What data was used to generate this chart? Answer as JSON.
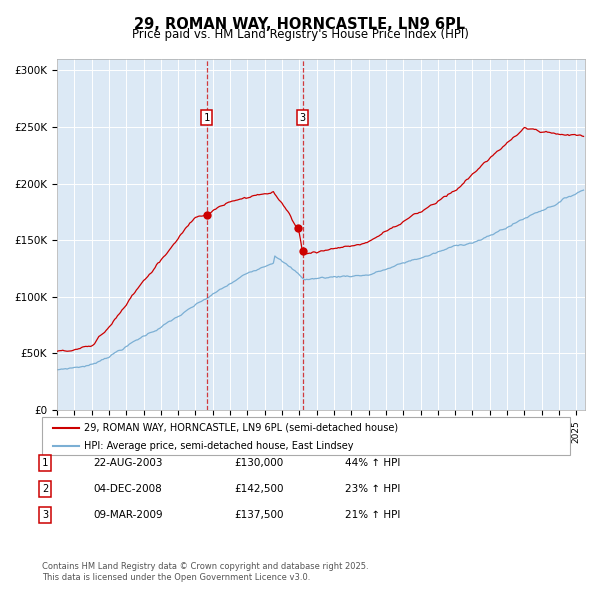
{
  "title": "29, ROMAN WAY, HORNCASTLE, LN9 6PL",
  "subtitle": "Price paid vs. HM Land Registry's House Price Index (HPI)",
  "bg_color": "#dce9f5",
  "red_color": "#cc0000",
  "blue_color": "#7bafd4",
  "legend_entries": [
    "29, ROMAN WAY, HORNCASTLE, LN9 6PL (semi-detached house)",
    "HPI: Average price, semi-detached house, East Lindsey"
  ],
  "transactions": [
    {
      "num": 1,
      "date": "22-AUG-2003",
      "price": 130000,
      "hpi_pct": "44% ↑ HPI",
      "x_year": 2003.64
    },
    {
      "num": 2,
      "date": "04-DEC-2008",
      "price": 142500,
      "hpi_pct": "23% ↑ HPI",
      "x_year": 2008.92
    },
    {
      "num": 3,
      "date": "09-MAR-2009",
      "price": 137500,
      "hpi_pct": "21% ↑ HPI",
      "x_year": 2009.19
    }
  ],
  "footnote": "Contains HM Land Registry data © Crown copyright and database right 2025.\nThis data is licensed under the Open Government Licence v3.0.",
  "ylim": [
    0,
    310000
  ],
  "yticks": [
    0,
    50000,
    100000,
    150000,
    200000,
    250000,
    300000
  ],
  "ytick_labels": [
    "£0",
    "£50K",
    "£100K",
    "£150K",
    "£200K",
    "£250K",
    "£300K"
  ],
  "xmin": 1995,
  "xmax": 2025.5
}
